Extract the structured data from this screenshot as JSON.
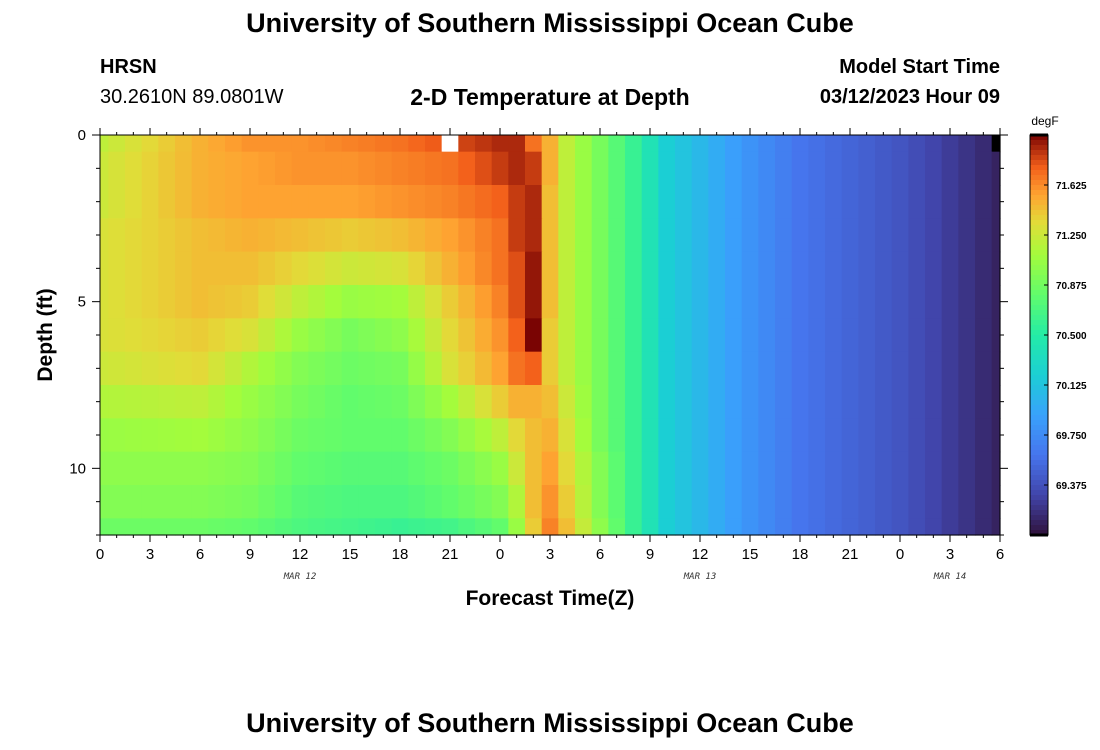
{
  "header": {
    "title": "University of Southern Mississippi Ocean Cube",
    "station": "HRSN",
    "coords": "30.2610N  89.0801W",
    "subtitle": "2-D Temperature at Depth",
    "model_start_label": "Model Start Time",
    "model_start_value": "03/12/2023 Hour 09"
  },
  "footer": {
    "title": "University of Southern Mississippi Ocean Cube"
  },
  "chart_data": {
    "type": "heatmap",
    "title": "2-D Temperature at Depth",
    "xlabel": "Forecast Time(Z)",
    "ylabel": "Depth (ft)",
    "x_range_hours": [
      0,
      54
    ],
    "y_range_ft": [
      0,
      12
    ],
    "y_reversed": true,
    "x_ticks": [
      {
        "h": 0,
        "label": "0"
      },
      {
        "h": 3,
        "label": "3"
      },
      {
        "h": 6,
        "label": "6"
      },
      {
        "h": 9,
        "label": "9"
      },
      {
        "h": 12,
        "label": "12"
      },
      {
        "h": 15,
        "label": "15"
      },
      {
        "h": 18,
        "label": "18"
      },
      {
        "h": 21,
        "label": "21"
      },
      {
        "h": 24,
        "label": "0"
      },
      {
        "h": 27,
        "label": "3"
      },
      {
        "h": 30,
        "label": "6"
      },
      {
        "h": 33,
        "label": "9"
      },
      {
        "h": 36,
        "label": "12"
      },
      {
        "h": 39,
        "label": "15"
      },
      {
        "h": 42,
        "label": "18"
      },
      {
        "h": 45,
        "label": "21"
      },
      {
        "h": 48,
        "label": "0"
      },
      {
        "h": 51,
        "label": "3"
      },
      {
        "h": 54,
        "label": "6"
      }
    ],
    "day_labels": [
      {
        "h": 12,
        "label": "MAR 12"
      },
      {
        "h": 36,
        "label": "MAR 13"
      },
      {
        "h": 51,
        "label": "MAR 14"
      }
    ],
    "y_ticks": [
      {
        "d": 0,
        "label": "0"
      },
      {
        "d": 5,
        "label": "5"
      },
      {
        "d": 10,
        "label": "10"
      }
    ],
    "colorbar": {
      "unit": "degF",
      "min": 69.0,
      "max": 72.0,
      "labels": [
        "71.625",
        "71.250",
        "70.875",
        "70.500",
        "70.125",
        "69.750",
        "69.375"
      ],
      "label_values": [
        71.625,
        71.25,
        70.875,
        70.5,
        70.125,
        69.75,
        69.375
      ]
    },
    "depth_levels_ft": [
      0,
      1,
      2,
      3,
      4,
      5,
      6,
      7,
      8,
      9,
      10,
      11,
      12
    ],
    "time_nodes_hours": [
      0,
      6,
      9,
      12,
      15,
      18,
      21,
      24,
      25,
      26,
      27,
      28,
      30,
      32,
      33,
      34,
      36,
      39,
      42,
      48,
      54
    ],
    "values_degF": [
      [
        71.2,
        71.5,
        71.6,
        71.6,
        71.65,
        71.7,
        71.8,
        71.9,
        71.9,
        71.7,
        71.5,
        71.2,
        70.9,
        70.6,
        70.4,
        70.2,
        70.05,
        69.8,
        69.6,
        69.4,
        69.1
      ],
      [
        71.25,
        71.5,
        71.55,
        71.6,
        71.6,
        71.65,
        71.7,
        71.85,
        71.9,
        71.85,
        71.5,
        71.2,
        70.9,
        70.6,
        70.4,
        70.2,
        70.05,
        69.8,
        69.6,
        69.4,
        69.1
      ],
      [
        71.25,
        71.5,
        71.55,
        71.55,
        71.55,
        71.6,
        71.65,
        71.75,
        71.85,
        71.9,
        71.45,
        71.2,
        70.9,
        70.6,
        70.4,
        70.2,
        70.05,
        69.8,
        69.6,
        69.4,
        69.1
      ],
      [
        71.3,
        71.45,
        71.5,
        71.45,
        71.4,
        71.45,
        71.55,
        71.7,
        71.85,
        71.9,
        71.45,
        71.2,
        70.9,
        70.6,
        70.4,
        70.2,
        70.05,
        69.8,
        69.6,
        69.4,
        69.1
      ],
      [
        71.3,
        71.45,
        71.45,
        71.35,
        71.25,
        71.3,
        71.5,
        71.7,
        71.8,
        71.95,
        71.45,
        71.2,
        70.9,
        70.6,
        70.4,
        70.2,
        70.05,
        69.8,
        69.6,
        69.4,
        69.1
      ],
      [
        71.3,
        71.45,
        71.4,
        71.2,
        71.05,
        71.1,
        71.4,
        71.65,
        71.8,
        71.95,
        71.45,
        71.2,
        70.9,
        70.6,
        70.4,
        70.2,
        70.05,
        69.8,
        69.6,
        69.4,
        69.1
      ],
      [
        71.3,
        71.4,
        71.3,
        71.05,
        70.9,
        71.0,
        71.35,
        71.6,
        71.75,
        72.0,
        71.4,
        71.2,
        70.9,
        70.6,
        70.4,
        70.2,
        70.05,
        69.8,
        69.6,
        69.4,
        69.1
      ],
      [
        71.25,
        71.35,
        71.15,
        70.95,
        70.85,
        70.9,
        71.3,
        71.55,
        71.7,
        71.75,
        71.4,
        71.2,
        70.9,
        70.6,
        70.4,
        70.2,
        70.05,
        69.8,
        69.6,
        69.4,
        69.1
      ],
      [
        71.15,
        71.2,
        71.05,
        70.9,
        70.8,
        70.85,
        71.1,
        71.4,
        71.5,
        71.5,
        71.45,
        71.25,
        70.9,
        70.6,
        70.4,
        70.2,
        70.05,
        69.8,
        69.6,
        69.4,
        69.1
      ],
      [
        71.05,
        71.1,
        71.0,
        70.85,
        70.8,
        70.8,
        70.95,
        71.2,
        71.35,
        71.45,
        71.5,
        71.3,
        70.9,
        70.6,
        70.4,
        70.2,
        70.05,
        69.8,
        69.6,
        69.4,
        69.1
      ],
      [
        71.0,
        71.0,
        70.95,
        70.8,
        70.75,
        70.75,
        70.85,
        71.05,
        71.25,
        71.45,
        71.55,
        71.35,
        70.95,
        70.6,
        70.4,
        70.2,
        70.05,
        69.8,
        69.6,
        69.4,
        69.1
      ],
      [
        70.95,
        70.95,
        70.9,
        70.75,
        70.7,
        70.7,
        70.8,
        70.95,
        71.15,
        71.45,
        71.6,
        71.4,
        70.95,
        70.6,
        70.4,
        70.2,
        70.05,
        69.8,
        69.6,
        69.4,
        69.1
      ],
      [
        70.85,
        70.85,
        70.8,
        70.7,
        70.65,
        70.6,
        70.65,
        70.8,
        71.05,
        71.4,
        71.65,
        71.45,
        71.0,
        70.6,
        70.4,
        70.2,
        70.05,
        69.8,
        69.6,
        69.4,
        69.1
      ]
    ],
    "missing_cells": [
      {
        "depth_ft": 0,
        "hour": 21
      },
      {
        "depth_ft": 0,
        "hour": 54
      }
    ]
  }
}
